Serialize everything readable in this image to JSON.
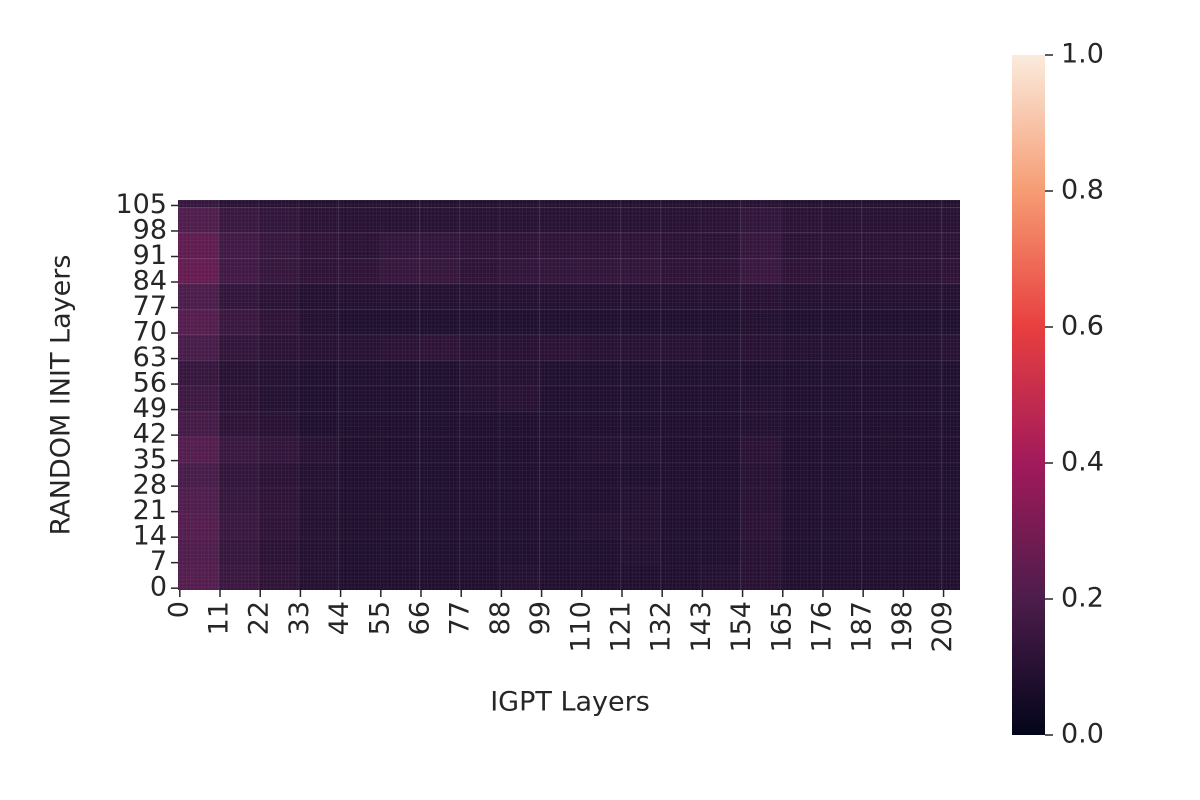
{
  "chart_data": {
    "type": "heatmap",
    "x_label": "IGPT Layers",
    "y_label": "RANDOM INIT Layers",
    "xlim": [
      0,
      214
    ],
    "ylim": [
      0,
      107
    ],
    "xbins": [
      0,
      11,
      22,
      33,
      44,
      55,
      66,
      77,
      88,
      99,
      110,
      121,
      132,
      143,
      154,
      165,
      176,
      187,
      198,
      209,
      214
    ],
    "ybins": [
      0,
      7,
      14,
      21,
      28,
      35,
      42,
      49,
      56,
      63,
      70,
      77,
      84,
      91,
      98,
      105,
      107
    ],
    "z": [
      [
        0.22,
        0.15,
        0.12,
        0.09,
        0.08,
        0.08,
        0.08,
        0.08,
        0.09,
        0.08,
        0.08,
        0.08,
        0.08,
        0.09,
        0.1,
        0.08,
        0.08,
        0.08,
        0.08,
        0.08
      ],
      [
        0.21,
        0.14,
        0.11,
        0.09,
        0.08,
        0.08,
        0.08,
        0.08,
        0.08,
        0.08,
        0.08,
        0.09,
        0.08,
        0.08,
        0.1,
        0.08,
        0.08,
        0.08,
        0.08,
        0.08
      ],
      [
        0.22,
        0.15,
        0.12,
        0.09,
        0.08,
        0.08,
        0.08,
        0.08,
        0.08,
        0.08,
        0.09,
        0.09,
        0.08,
        0.08,
        0.11,
        0.08,
        0.08,
        0.08,
        0.08,
        0.08
      ],
      [
        0.21,
        0.14,
        0.12,
        0.09,
        0.08,
        0.08,
        0.08,
        0.08,
        0.08,
        0.08,
        0.08,
        0.09,
        0.08,
        0.08,
        0.1,
        0.08,
        0.08,
        0.08,
        0.08,
        0.08
      ],
      [
        0.19,
        0.13,
        0.11,
        0.09,
        0.08,
        0.08,
        0.08,
        0.08,
        0.08,
        0.08,
        0.08,
        0.08,
        0.08,
        0.08,
        0.1,
        0.08,
        0.08,
        0.08,
        0.08,
        0.08
      ],
      [
        0.22,
        0.15,
        0.13,
        0.1,
        0.08,
        0.08,
        0.08,
        0.08,
        0.08,
        0.08,
        0.09,
        0.09,
        0.08,
        0.08,
        0.11,
        0.08,
        0.08,
        0.08,
        0.08,
        0.08
      ],
      [
        0.18,
        0.12,
        0.1,
        0.08,
        0.08,
        0.08,
        0.08,
        0.08,
        0.08,
        0.08,
        0.08,
        0.08,
        0.08,
        0.08,
        0.09,
        0.08,
        0.08,
        0.08,
        0.08,
        0.08
      ],
      [
        0.16,
        0.11,
        0.09,
        0.08,
        0.08,
        0.08,
        0.08,
        0.09,
        0.1,
        0.08,
        0.08,
        0.08,
        0.08,
        0.08,
        0.09,
        0.08,
        0.08,
        0.08,
        0.08,
        0.08
      ],
      [
        0.14,
        0.1,
        0.09,
        0.08,
        0.08,
        0.08,
        0.08,
        0.09,
        0.09,
        0.08,
        0.08,
        0.08,
        0.08,
        0.08,
        0.08,
        0.08,
        0.08,
        0.08,
        0.08,
        0.08
      ],
      [
        0.19,
        0.13,
        0.11,
        0.1,
        0.1,
        0.11,
        0.12,
        0.1,
        0.1,
        0.11,
        0.1,
        0.1,
        0.1,
        0.09,
        0.1,
        0.09,
        0.09,
        0.09,
        0.09,
        0.1
      ],
      [
        0.22,
        0.15,
        0.12,
        0.09,
        0.08,
        0.08,
        0.08,
        0.08,
        0.08,
        0.08,
        0.08,
        0.08,
        0.08,
        0.08,
        0.09,
        0.08,
        0.08,
        0.08,
        0.08,
        0.08
      ],
      [
        0.2,
        0.13,
        0.11,
        0.09,
        0.09,
        0.09,
        0.09,
        0.09,
        0.09,
        0.09,
        0.09,
        0.09,
        0.09,
        0.09,
        0.1,
        0.09,
        0.09,
        0.09,
        0.09,
        0.09
      ],
      [
        0.26,
        0.17,
        0.14,
        0.12,
        0.12,
        0.14,
        0.14,
        0.12,
        0.13,
        0.13,
        0.13,
        0.13,
        0.12,
        0.12,
        0.15,
        0.12,
        0.11,
        0.11,
        0.11,
        0.12
      ],
      [
        0.25,
        0.17,
        0.14,
        0.12,
        0.11,
        0.13,
        0.13,
        0.12,
        0.12,
        0.12,
        0.12,
        0.12,
        0.11,
        0.11,
        0.14,
        0.11,
        0.11,
        0.11,
        0.11,
        0.11
      ],
      [
        0.21,
        0.15,
        0.13,
        0.11,
        0.1,
        0.1,
        0.1,
        0.1,
        0.1,
        0.1,
        0.1,
        0.1,
        0.1,
        0.11,
        0.13,
        0.11,
        0.1,
        0.1,
        0.1,
        0.1
      ],
      [
        0.14,
        0.11,
        0.1,
        0.09,
        0.09,
        0.09,
        0.09,
        0.09,
        0.09,
        0.09,
        0.09,
        0.09,
        0.09,
        0.09,
        0.1,
        0.09,
        0.09,
        0.09,
        0.09,
        0.09
      ]
    ],
    "xticks": [
      0,
      11,
      22,
      33,
      44,
      55,
      66,
      77,
      88,
      99,
      110,
      121,
      132,
      143,
      154,
      165,
      176,
      187,
      198,
      209
    ],
    "yticks": [
      0,
      7,
      14,
      21,
      28,
      35,
      42,
      49,
      56,
      63,
      70,
      77,
      84,
      91,
      98,
      105
    ],
    "clim": [
      0,
      1
    ],
    "colorbar_ticks": [
      {
        "value": 0,
        "label": "0.0"
      },
      0.2,
      0.4,
      0.6,
      0.8,
      {
        "value": 1,
        "label": "1.0"
      }
    ],
    "colormap": [
      "#03051a",
      "#4c1d4b",
      "#a11a5b",
      "#e83f3f",
      "#f69c73",
      "#faebdd"
    ]
  }
}
